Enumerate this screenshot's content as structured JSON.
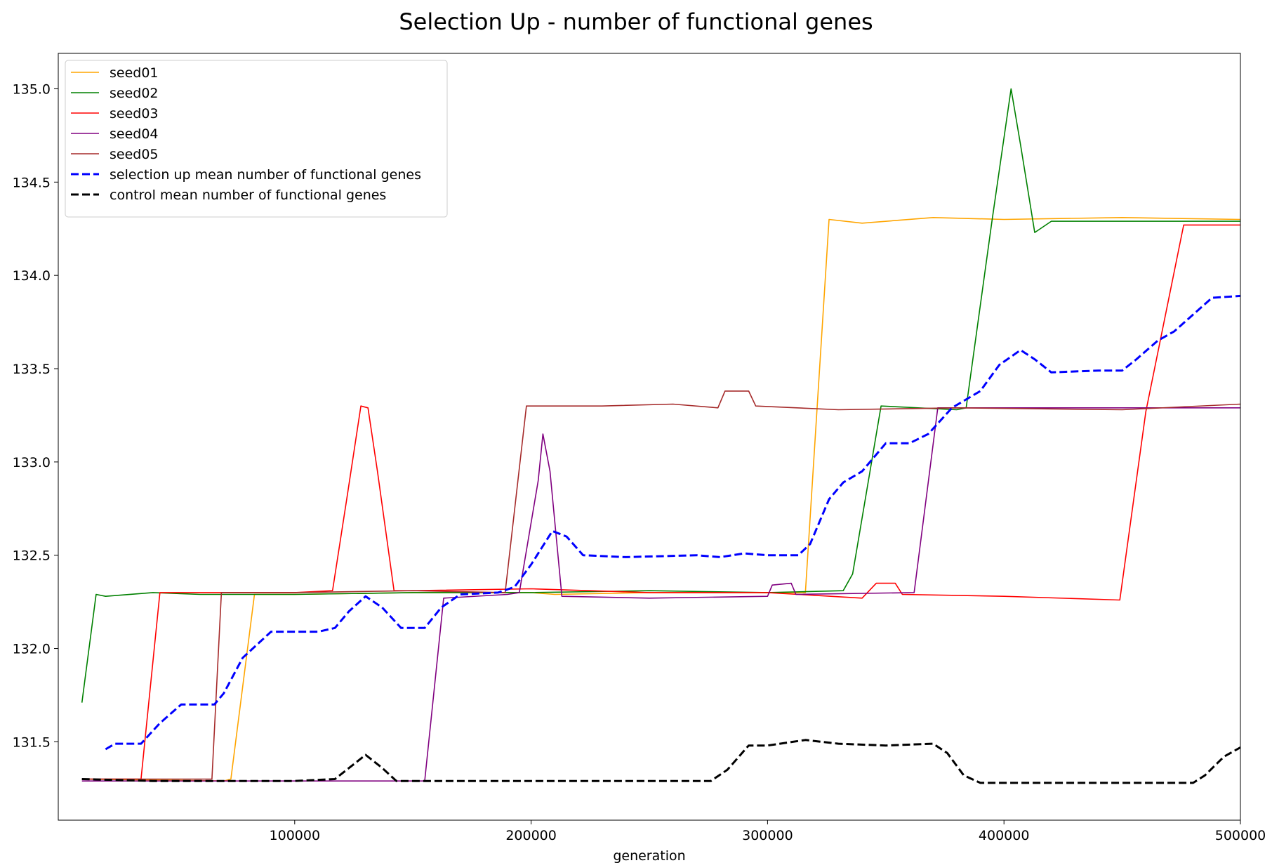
{
  "chart_data": {
    "type": "line",
    "title": "Selection Up - number of functional genes",
    "xlabel": "generation",
    "ylabel": "",
    "xlim": [
      0,
      500000
    ],
    "ylim": [
      131.08,
      135.19
    ],
    "xticks": [
      100000,
      200000,
      300000,
      400000,
      500000
    ],
    "xtick_labels": [
      "100000",
      "200000",
      "300000",
      "400000",
      "500000"
    ],
    "yticks": [
      131.5,
      132.0,
      132.5,
      133.0,
      133.5,
      134.0,
      134.5,
      135.0
    ],
    "ytick_labels": [
      "131.5",
      "132.0",
      "132.5",
      "133.0",
      "133.5",
      "134.0",
      "134.5",
      "135.0"
    ],
    "grid": false,
    "legend_position": "top-left",
    "series": [
      {
        "name": "seed01",
        "color": "#FFA500",
        "style": "solid",
        "x": [
          10000,
          70000,
          73000,
          83000,
          100000,
          150000,
          200000,
          210000,
          250000,
          300000,
          316000,
          326000,
          340000,
          370000,
          400000,
          450000,
          500000
        ],
        "y": [
          131.3,
          131.29,
          131.3,
          132.29,
          132.29,
          132.3,
          132.3,
          132.29,
          132.3,
          132.3,
          132.3,
          134.3,
          134.28,
          134.31,
          134.3,
          134.31,
          134.3
        ]
      },
      {
        "name": "seed02",
        "color": "#008000",
        "style": "solid",
        "x": [
          10000,
          16000,
          20000,
          40000,
          60000,
          100000,
          150000,
          200000,
          250000,
          300000,
          332000,
          336000,
          348000,
          380000,
          384000,
          395000,
          403000,
          407000,
          413000,
          420000,
          500000
        ],
        "y": [
          131.71,
          132.29,
          132.28,
          132.3,
          132.29,
          132.29,
          132.3,
          132.3,
          132.31,
          132.3,
          132.31,
          132.4,
          133.3,
          133.28,
          133.29,
          134.3,
          135.0,
          134.7,
          134.23,
          134.29,
          134.29
        ]
      },
      {
        "name": "seed03",
        "color": "#FF0000",
        "style": "solid",
        "x": [
          10000,
          35000,
          43000,
          60000,
          100000,
          116000,
          122000,
          128000,
          131000,
          135000,
          142000,
          150000,
          200000,
          250000,
          300000,
          340000,
          346000,
          354000,
          357000,
          400000,
          449000,
          460000,
          476000,
          500000
        ],
        "y": [
          131.3,
          131.3,
          132.3,
          132.3,
          132.3,
          132.31,
          132.8,
          133.3,
          133.29,
          132.95,
          132.31,
          132.31,
          132.32,
          132.3,
          132.3,
          132.27,
          132.35,
          132.35,
          132.29,
          132.28,
          132.26,
          133.27,
          134.27,
          134.27
        ]
      },
      {
        "name": "seed04",
        "color": "#800080",
        "style": "solid",
        "x": [
          10000,
          100000,
          155000,
          163000,
          190000,
          195000,
          203000,
          205000,
          208000,
          213000,
          250000,
          300000,
          302000,
          310000,
          312000,
          362000,
          372000,
          400000,
          450000,
          500000
        ],
        "y": [
          131.29,
          131.29,
          131.29,
          132.27,
          132.29,
          132.3,
          132.9,
          133.15,
          132.95,
          132.28,
          132.27,
          132.28,
          132.34,
          132.35,
          132.29,
          132.3,
          133.29,
          133.29,
          133.29,
          133.29
        ]
      },
      {
        "name": "seed05",
        "color": "#A52A2A",
        "style": "solid",
        "x": [
          10000,
          65000,
          69000,
          80000,
          100000,
          150000,
          189000,
          198000,
          230000,
          260000,
          279000,
          282000,
          292000,
          295000,
          330000,
          380000,
          450000,
          500000
        ],
        "y": [
          131.3,
          131.3,
          132.3,
          132.3,
          132.3,
          132.31,
          132.3,
          133.3,
          133.3,
          133.31,
          133.29,
          133.38,
          133.38,
          133.3,
          133.28,
          133.29,
          133.28,
          133.31
        ]
      },
      {
        "name": "selection up mean number of functional genes",
        "color": "#0000FF",
        "style": "dashed",
        "x": [
          20000,
          24000,
          35000,
          43000,
          52000,
          66000,
          70000,
          78000,
          90000,
          110000,
          117000,
          123000,
          130000,
          137000,
          145000,
          155000,
          162000,
          170000,
          186000,
          193000,
          200000,
          209000,
          215000,
          222000,
          240000,
          270000,
          280000,
          290000,
          300000,
          313000,
          318000,
          326000,
          332000,
          340000,
          350000,
          360000,
          368000,
          378000,
          390000,
          398000,
          407000,
          413000,
          420000,
          440000,
          450000,
          456000,
          465000,
          472000,
          480000,
          488000,
          500000
        ],
        "y": [
          131.46,
          131.49,
          131.49,
          131.6,
          131.7,
          131.7,
          131.76,
          131.95,
          132.09,
          132.09,
          132.11,
          132.2,
          132.28,
          132.22,
          132.11,
          132.11,
          132.22,
          132.29,
          132.3,
          132.33,
          132.45,
          132.63,
          132.6,
          132.5,
          132.49,
          132.5,
          132.49,
          132.51,
          132.5,
          132.5,
          132.56,
          132.8,
          132.89,
          132.95,
          133.1,
          133.1,
          133.15,
          133.29,
          133.38,
          133.52,
          133.6,
          133.55,
          133.48,
          133.49,
          133.49,
          133.55,
          133.65,
          133.7,
          133.79,
          133.88,
          133.89
        ]
      },
      {
        "name": "control mean number of functional genes",
        "color": "#000000",
        "style": "dashed",
        "x": [
          10000,
          40000,
          70000,
          100000,
          117000,
          123000,
          130000,
          137000,
          143000,
          160000,
          200000,
          250000,
          276000,
          283000,
          292000,
          300000,
          316000,
          330000,
          350000,
          370000,
          376000,
          383000,
          390000,
          420000,
          460000,
          480000,
          485000,
          493000,
          500000
        ],
        "y": [
          131.3,
          131.29,
          131.29,
          131.29,
          131.3,
          131.36,
          131.43,
          131.36,
          131.29,
          131.29,
          131.29,
          131.29,
          131.29,
          131.35,
          131.48,
          131.48,
          131.51,
          131.49,
          131.48,
          131.49,
          131.44,
          131.32,
          131.28,
          131.28,
          131.28,
          131.28,
          131.32,
          131.42,
          131.47
        ]
      }
    ]
  }
}
